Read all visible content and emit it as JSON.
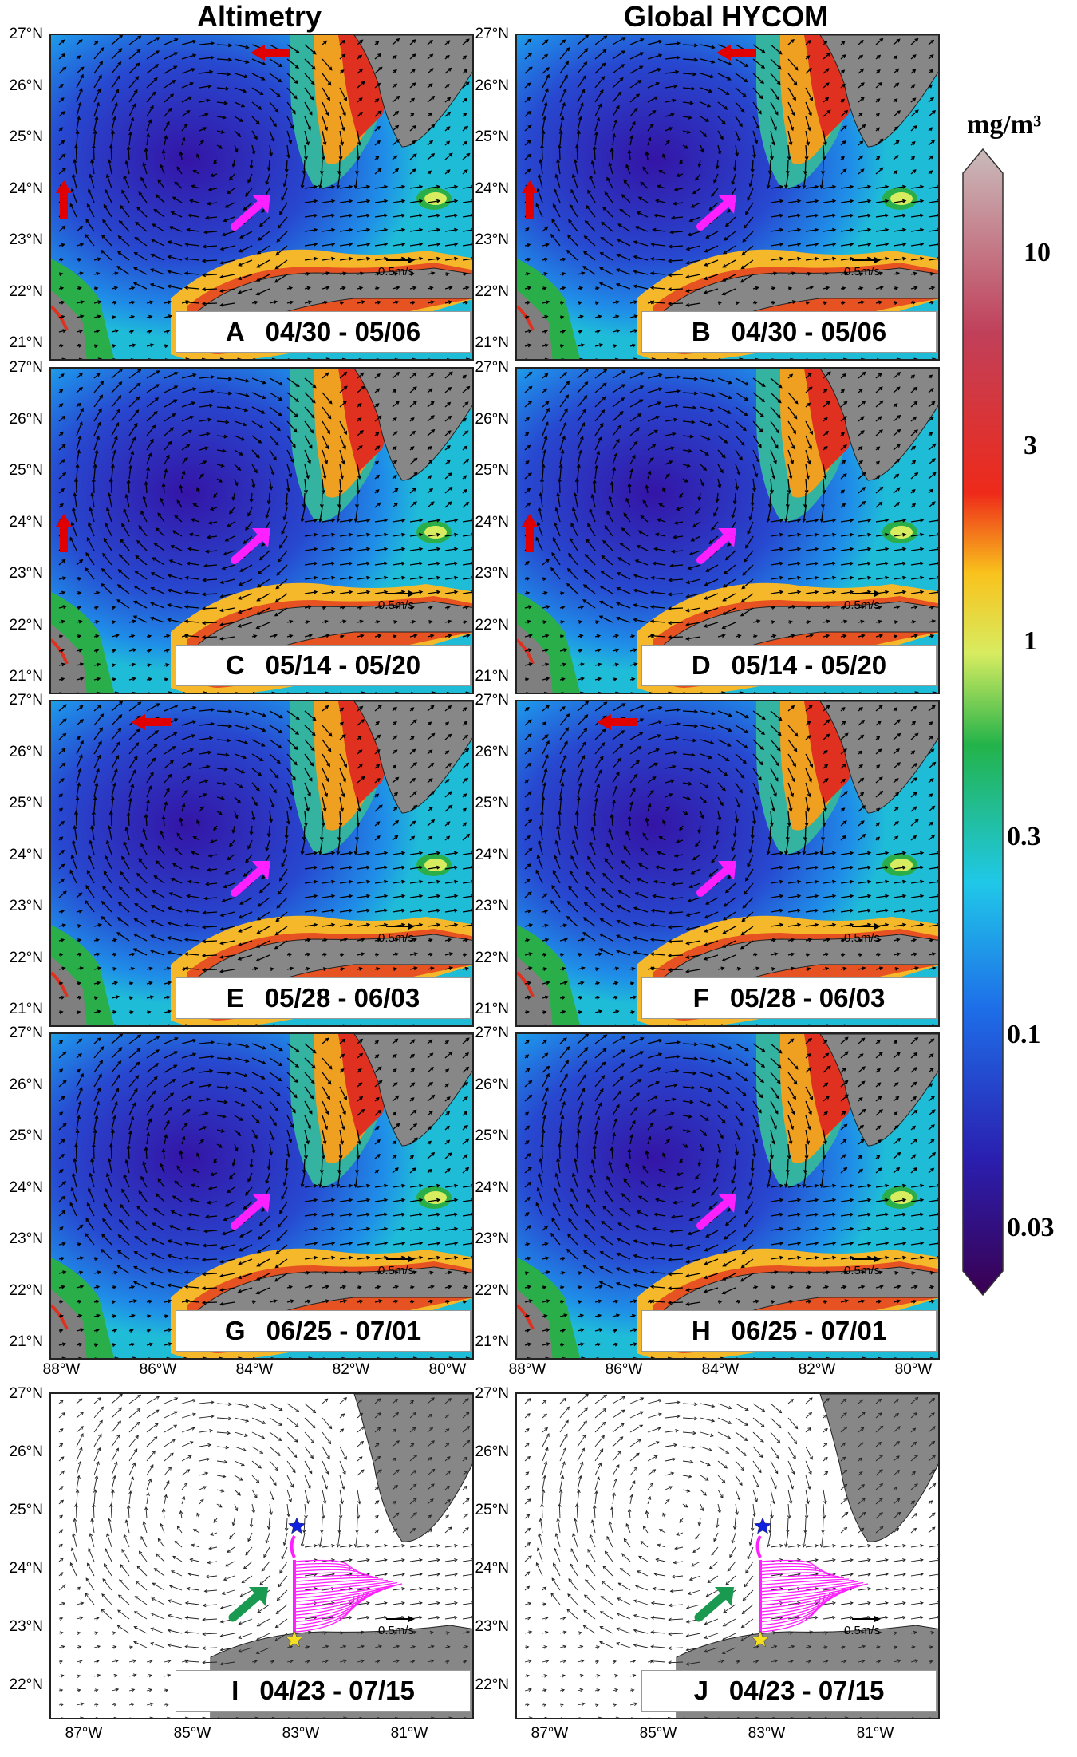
{
  "titles": {
    "left": "Altimetry",
    "right": "Global HYCOM"
  },
  "panels": [
    {
      "letter": "A",
      "dates": "04/30 - 05/06"
    },
    {
      "letter": "B",
      "dates": "04/30 - 05/06"
    },
    {
      "letter": "C",
      "dates": "05/14 - 05/20"
    },
    {
      "letter": "D",
      "dates": "05/14 - 05/20"
    },
    {
      "letter": "E",
      "dates": "05/28 - 06/03"
    },
    {
      "letter": "F",
      "dates": "05/28 - 06/03"
    },
    {
      "letter": "G",
      "dates": "06/25 - 07/01"
    },
    {
      "letter": "H",
      "dates": "06/25 - 07/01"
    },
    {
      "letter": "I",
      "dates": "04/23 - 07/15"
    },
    {
      "letter": "J",
      "dates": "04/23 - 07/15"
    }
  ],
  "scale_label": "0.5m/s",
  "lat_labels": [
    "27°N",
    "26°N",
    "25°N",
    "24°N",
    "23°N",
    "22°N",
    "21°N"
  ],
  "lat_labels_bottom": [
    "27°N",
    "26°N",
    "25°N",
    "24°N",
    "23°N",
    "22°N"
  ],
  "lon_labels_maps": [
    "88°W",
    "86°W",
    "84°W",
    "82°W",
    "80°W"
  ],
  "lon_labels_bottom": [
    "87°W",
    "85°W",
    "83°W",
    "81°W"
  ],
  "colorbar": {
    "unit": "mg/m³",
    "ticks": [
      "10",
      "3",
      "1",
      "0.3",
      "0.1",
      "0.03"
    ],
    "colors": [
      "#3a0050",
      "#2a1fb0",
      "#1e6ee8",
      "#20c8e8",
      "#23b34a",
      "#d8ec60",
      "#f9a21c",
      "#ee2a1a",
      "#c0405a",
      "#bbaaaa"
    ]
  },
  "arrow_colors": {
    "red": "#e00000",
    "magenta": "#ff20ff",
    "green": "#1a9a50"
  }
}
